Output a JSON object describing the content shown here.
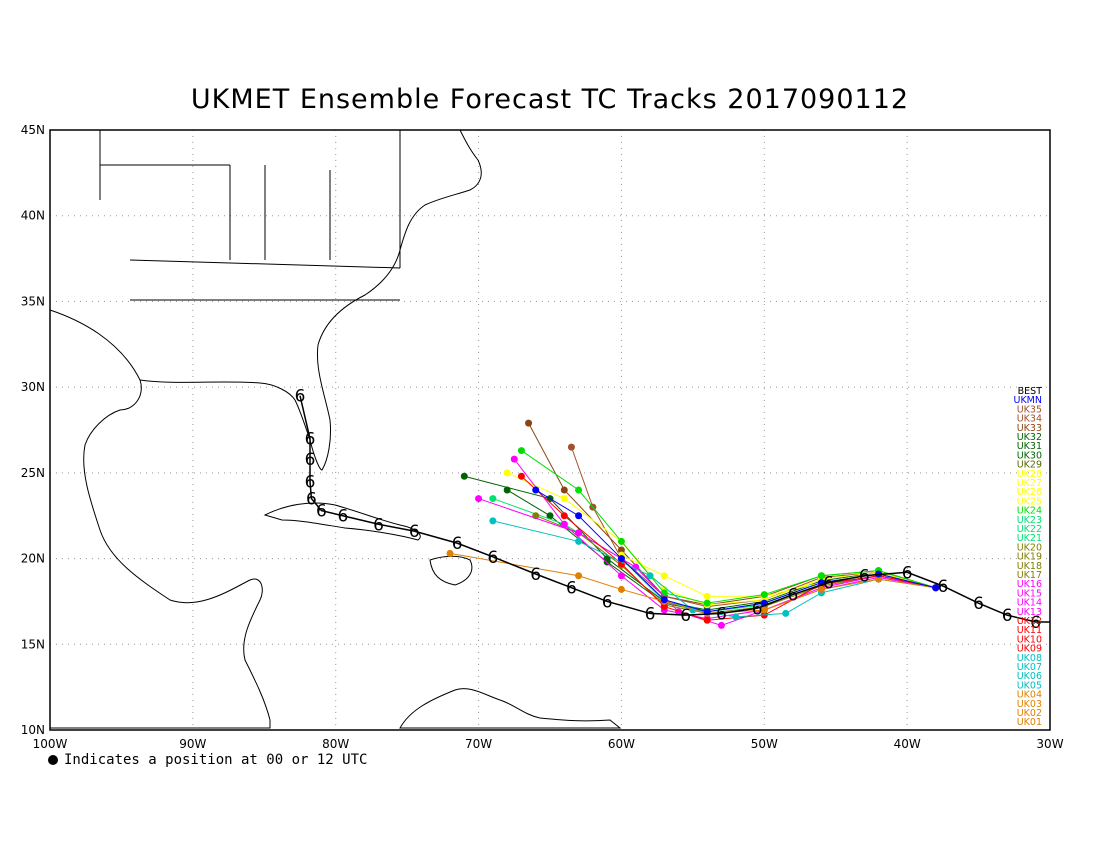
{
  "title": "UKMET Ensemble Forecast TC Tracks 2017090112",
  "footnote": "Indicates a position at 00 or 12 UTC",
  "map": {
    "lon_range": [
      -100,
      -30
    ],
    "lat_range": [
      10,
      45
    ],
    "lon_ticks": [
      {
        "value": -100,
        "label": "100W"
      },
      {
        "value": -90,
        "label": "90W"
      },
      {
        "value": -80,
        "label": "80W"
      },
      {
        "value": -70,
        "label": "70W"
      },
      {
        "value": -60,
        "label": "60W"
      },
      {
        "value": -50,
        "label": "50W"
      },
      {
        "value": -40,
        "label": "40W"
      },
      {
        "value": -30,
        "label": "30W"
      }
    ],
    "lat_ticks": [
      {
        "value": 10,
        "label": "10N"
      },
      {
        "value": 15,
        "label": "15N"
      },
      {
        "value": 20,
        "label": "20N"
      },
      {
        "value": 25,
        "label": "25N"
      },
      {
        "value": 30,
        "label": "30N"
      },
      {
        "value": 35,
        "label": "35N"
      },
      {
        "value": 40,
        "label": "40N"
      },
      {
        "value": 45,
        "label": "45N"
      }
    ],
    "grid": "dotted"
  },
  "legend": {
    "placement": "right",
    "entries": [
      {
        "label": "BEST",
        "color": "#000000"
      },
      {
        "label": "UKMN",
        "color": "#0000ff"
      },
      {
        "label": "UK35",
        "color": "#a0522d"
      },
      {
        "label": "UK34",
        "color": "#a0522d"
      },
      {
        "label": "UK33",
        "color": "#8b4513"
      },
      {
        "label": "UK32",
        "color": "#006400"
      },
      {
        "label": "UK31",
        "color": "#006400"
      },
      {
        "label": "UK30",
        "color": "#006400"
      },
      {
        "label": "UK29",
        "color": "#556b00"
      },
      {
        "label": "UK28",
        "color": "#ffff00"
      },
      {
        "label": "UK27",
        "color": "#ffff00"
      },
      {
        "label": "UK26",
        "color": "#ffff00"
      },
      {
        "label": "UK25",
        "color": "#ffff00"
      },
      {
        "label": "UK24",
        "color": "#00e000"
      },
      {
        "label": "UK23",
        "color": "#00e070"
      },
      {
        "label": "UK22",
        "color": "#00e070"
      },
      {
        "label": "UK21",
        "color": "#00e070"
      },
      {
        "label": "UK20",
        "color": "#808000"
      },
      {
        "label": "UK19",
        "color": "#808000"
      },
      {
        "label": "UK18",
        "color": "#808000"
      },
      {
        "label": "UK17",
        "color": "#808000"
      },
      {
        "label": "UK16",
        "color": "#ff00ff"
      },
      {
        "label": "UK15",
        "color": "#ff00ff"
      },
      {
        "label": "UK14",
        "color": "#ff00ff"
      },
      {
        "label": "UK13",
        "color": "#ff00ff"
      },
      {
        "label": "UK12",
        "color": "#ff0000"
      },
      {
        "label": "UK11",
        "color": "#ff0000"
      },
      {
        "label": "UK10",
        "color": "#ff0000"
      },
      {
        "label": "UK09",
        "color": "#ff0000"
      },
      {
        "label": "UK08",
        "color": "#00c0c0"
      },
      {
        "label": "UK07",
        "color": "#00c0c0"
      },
      {
        "label": "UK06",
        "color": "#00c0c0"
      },
      {
        "label": "UK05",
        "color": "#00c0c0"
      },
      {
        "label": "UK04",
        "color": "#e08000"
      },
      {
        "label": "UK03",
        "color": "#e08000"
      },
      {
        "label": "UK02",
        "color": "#e08000"
      },
      {
        "label": "UK01",
        "color": "#e08000"
      }
    ]
  },
  "best_track": [
    [
      -31,
      16.3
    ],
    [
      -33,
      16.7
    ],
    [
      -35,
      17.4
    ],
    [
      -37.5,
      18.4
    ],
    [
      -40,
      19.2
    ],
    [
      -43,
      19.0
    ],
    [
      -45.5,
      18.6
    ],
    [
      -48,
      17.9
    ],
    [
      -50.5,
      17.1
    ],
    [
      -53,
      16.8
    ],
    [
      -55.5,
      16.7
    ],
    [
      -58,
      16.8
    ],
    [
      -61,
      17.5
    ],
    [
      -63.5,
      18.3
    ],
    [
      -66,
      19.1
    ],
    [
      -69,
      20.1
    ],
    [
      -71.5,
      20.9
    ],
    [
      -74.5,
      21.6
    ],
    [
      -77,
      22.0
    ],
    [
      -79.5,
      22.5
    ],
    [
      -81,
      22.8
    ],
    [
      -81.7,
      23.5
    ],
    [
      -81.8,
      24.5
    ],
    [
      -81.8,
      25.8
    ],
    [
      -81.8,
      27.0
    ],
    [
      -82.5,
      29.5
    ]
  ],
  "ensemble_tracks": [
    {
      "color": "#8b4513",
      "points": [
        [
          -38,
          18.3
        ],
        [
          -42,
          19.3
        ],
        [
          -46,
          19.0
        ],
        [
          -50,
          17.8
        ],
        [
          -54,
          17.3
        ],
        [
          -57,
          17.8
        ],
        [
          -60,
          20.5
        ],
        [
          -64,
          24.0
        ],
        [
          -66.5,
          27.9
        ]
      ]
    },
    {
      "color": "#a0522d",
      "points": [
        [
          -38,
          18.3
        ],
        [
          -42,
          19.2
        ],
        [
          -46,
          18.9
        ],
        [
          -50,
          17.6
        ],
        [
          -54,
          17.2
        ],
        [
          -57,
          17.8
        ],
        [
          -60,
          20.0
        ],
        [
          -62,
          23.0
        ],
        [
          -63.5,
          26.5
        ]
      ]
    },
    {
      "color": "#006400",
      "points": [
        [
          -38,
          18.3
        ],
        [
          -42,
          19.2
        ],
        [
          -46,
          18.7
        ],
        [
          -50,
          17.5
        ],
        [
          -54,
          17.0
        ],
        [
          -57,
          17.5
        ],
        [
          -61,
          20.0
        ],
        [
          -65,
          23.5
        ],
        [
          -71,
          24.8
        ]
      ]
    },
    {
      "color": "#006400",
      "points": [
        [
          -38,
          18.3
        ],
        [
          -42,
          19.1
        ],
        [
          -46,
          18.6
        ],
        [
          -50,
          17.4
        ],
        [
          -54,
          16.9
        ],
        [
          -57,
          17.4
        ],
        [
          -61,
          19.8
        ],
        [
          -65,
          22.5
        ],
        [
          -68,
          24.0
        ]
      ]
    },
    {
      "color": "#ffff00",
      "points": [
        [
          -38,
          18.3
        ],
        [
          -42,
          19.2
        ],
        [
          -46,
          18.8
        ],
        [
          -50,
          17.6
        ],
        [
          -54,
          17.3
        ],
        [
          -57,
          18.2
        ],
        [
          -60,
          21.0
        ],
        [
          -64,
          23.5
        ],
        [
          -68,
          25.0
        ]
      ]
    },
    {
      "color": "#ffff00",
      "points": [
        [
          -38,
          18.3
        ],
        [
          -42,
          19.1
        ],
        [
          -46,
          18.6
        ],
        [
          -50,
          17.8
        ],
        [
          -54,
          17.8
        ],
        [
          -57,
          19.0
        ],
        [
          -60,
          20.2
        ]
      ]
    },
    {
      "color": "#00e000",
      "points": [
        [
          -38,
          18.3
        ],
        [
          -42,
          19.3
        ],
        [
          -46,
          19.0
        ],
        [
          -50,
          17.9
        ],
        [
          -54,
          17.4
        ],
        [
          -57,
          18.0
        ],
        [
          -60,
          21.0
        ],
        [
          -63,
          24.0
        ],
        [
          -67,
          26.3
        ]
      ]
    },
    {
      "color": "#00e070",
      "points": [
        [
          -38,
          18.3
        ],
        [
          -42,
          19.0
        ],
        [
          -46,
          18.5
        ],
        [
          -50,
          17.3
        ],
        [
          -54,
          16.9
        ],
        [
          -57,
          17.5
        ],
        [
          -60,
          20.0
        ],
        [
          -64,
          22.0
        ],
        [
          -69,
          23.5
        ]
      ]
    },
    {
      "color": "#808000",
      "points": [
        [
          -38,
          18.3
        ],
        [
          -42,
          19.0
        ],
        [
          -46,
          18.4
        ],
        [
          -50,
          17.2
        ],
        [
          -54,
          16.8
        ],
        [
          -57,
          17.3
        ],
        [
          -60,
          19.6
        ],
        [
          -63,
          21.5
        ],
        [
          -66,
          22.5
        ]
      ]
    },
    {
      "color": "#ff00ff",
      "points": [
        [
          -38,
          18.3
        ],
        [
          -42,
          18.9
        ],
        [
          -46,
          18.2
        ],
        [
          -50,
          17.0
        ],
        [
          -53,
          16.1
        ],
        [
          -56,
          16.9
        ],
        [
          -59,
          19.5
        ],
        [
          -63,
          21.5
        ],
        [
          -70,
          23.5
        ]
      ]
    },
    {
      "color": "#ff00ff",
      "points": [
        [
          -38,
          18.3
        ],
        [
          -42,
          19.0
        ],
        [
          -46,
          18.3
        ],
        [
          -50,
          17.0
        ],
        [
          -54,
          16.5
        ],
        [
          -57,
          17.0
        ],
        [
          -60,
          19.0
        ],
        [
          -64,
          22.0
        ],
        [
          -67.5,
          25.8
        ]
      ]
    },
    {
      "color": "#ff0000",
      "points": [
        [
          -38,
          18.3
        ],
        [
          -42,
          19.0
        ],
        [
          -46,
          18.5
        ],
        [
          -50,
          16.7
        ],
        [
          -54,
          16.4
        ],
        [
          -57,
          17.2
        ],
        [
          -60,
          19.7
        ],
        [
          -64,
          22.5
        ],
        [
          -67,
          24.8
        ]
      ]
    },
    {
      "color": "#00c0c0",
      "points": [
        [
          -38,
          18.3
        ],
        [
          -42,
          18.8
        ],
        [
          -46,
          18.0
        ],
        [
          -48.5,
          16.8
        ],
        [
          -52,
          16.6
        ],
        [
          -55,
          17.0
        ],
        [
          -58,
          19.0
        ],
        [
          -63,
          21.0
        ],
        [
          -69,
          22.2
        ]
      ]
    },
    {
      "color": "#e08000",
      "points": [
        [
          -38,
          18.3
        ],
        [
          -42,
          18.8
        ],
        [
          -46,
          18.2
        ],
        [
          -50,
          17.0
        ],
        [
          -54,
          16.8
        ],
        [
          -57,
          17.5
        ],
        [
          -60,
          18.2
        ],
        [
          -63,
          19.0
        ],
        [
          -72,
          20.3
        ]
      ]
    },
    {
      "color": "#0000ff",
      "points": [
        [
          -38,
          18.3
        ],
        [
          -42,
          19.1
        ],
        [
          -46,
          18.6
        ],
        [
          -50,
          17.4
        ],
        [
          -54,
          16.9
        ],
        [
          -57,
          17.6
        ],
        [
          -60,
          20.0
        ],
        [
          -63,
          22.5
        ],
        [
          -66,
          24.0
        ]
      ]
    }
  ]
}
